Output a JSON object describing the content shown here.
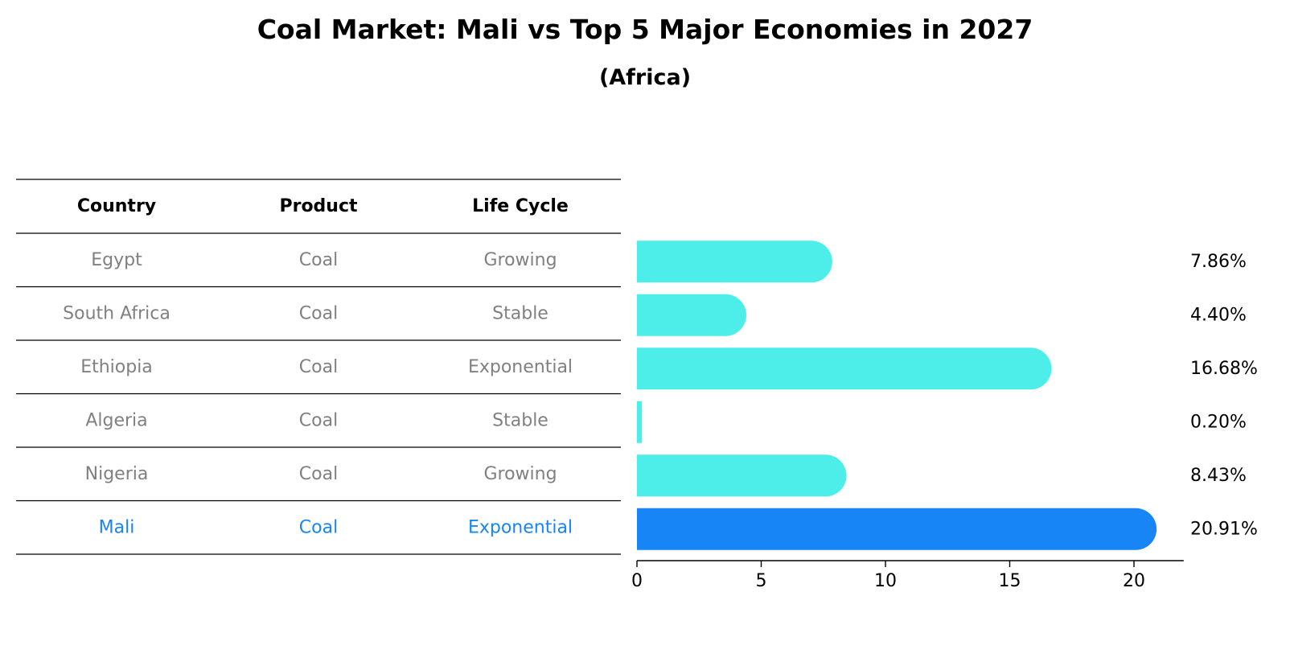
{
  "title": "Coal Market: Mali vs Top 5 Major Economies in 2027",
  "subtitle": "(Africa)",
  "table": {
    "headers": [
      "Country",
      "Product",
      "Life Cycle"
    ],
    "rows": [
      [
        "Egypt",
        "Coal",
        "Growing"
      ],
      [
        "South Africa",
        "Coal",
        "Stable"
      ],
      [
        "Ethiopia",
        "Coal",
        "Exponential"
      ],
      [
        "Algeria",
        "Coal",
        "Stable"
      ],
      [
        "Nigeria",
        "Coal",
        "Growing"
      ],
      [
        "Mali",
        "Coal",
        "Exponential"
      ]
    ],
    "highlight_row": 5
  },
  "colors": {
    "bar": "#4DEEEA",
    "highlight": "#1785F5",
    "muted_text": "#808080",
    "highlight_text": "#1785F5"
  },
  "chart_data": {
    "type": "bar",
    "orientation": "horizontal",
    "categories": [
      "Egypt",
      "South Africa",
      "Ethiopia",
      "Algeria",
      "Nigeria",
      "Mali"
    ],
    "values": [
      7.86,
      4.4,
      16.68,
      0.2,
      8.43,
      20.91
    ],
    "value_labels": [
      "7.86%",
      "4.40%",
      "16.68%",
      "0.20%",
      "8.43%",
      "20.91%"
    ],
    "xlim": [
      0,
      22
    ],
    "xticks": [
      0,
      5,
      10,
      15,
      20
    ],
    "highlight_category": "Mali",
    "grid": false
  }
}
